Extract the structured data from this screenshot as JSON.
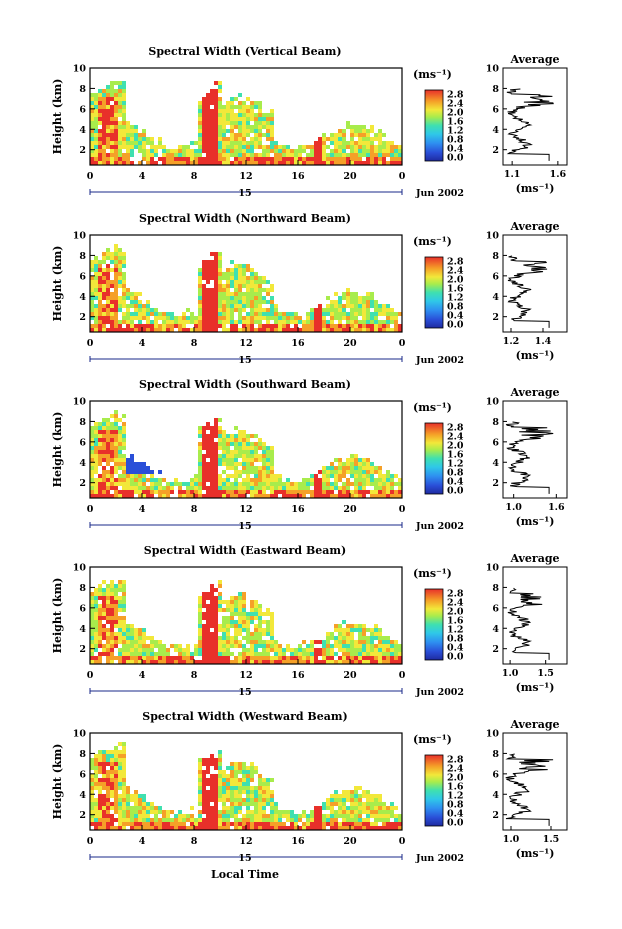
{
  "figure": {
    "xlabel": "Local Time",
    "ylabel": "Height (km)",
    "date_label": "Jun 2002",
    "day_label": "15",
    "colorbar_unit": "(ms⁻¹)",
    "avg_title": "Average",
    "avg_xlabel": "(ms⁻¹)"
  },
  "chart_data": [
    {
      "type": "heatmap",
      "title": "Spectral Width (Vertical Beam)",
      "x_ticks": [
        "0",
        "4",
        "8",
        "12",
        "16",
        "20",
        "0"
      ],
      "y_ticks": [
        "2",
        "4",
        "6",
        "8",
        "10"
      ],
      "xlim": [
        0,
        24
      ],
      "ylim": [
        0.5,
        10
      ],
      "colorbar": {
        "ticks": [
          "0.0",
          "0.4",
          "0.8",
          "1.2",
          "1.6",
          "2.0",
          "2.4",
          "2.8"
        ],
        "range": [
          0,
          2.8
        ]
      },
      "average": {
        "x_ticks": [
          "1.1",
          "1.6"
        ],
        "xlim": [
          1.0,
          1.7
        ],
        "y_ticks": [
          "2",
          "4",
          "6",
          "8",
          "10"
        ]
      }
    },
    {
      "type": "heatmap",
      "title": "Spectral Width (Northward Beam)",
      "x_ticks": [
        "0",
        "4",
        "8",
        "12",
        "16",
        "20",
        "0"
      ],
      "y_ticks": [
        "2",
        "4",
        "6",
        "8",
        "10"
      ],
      "xlim": [
        0,
        24
      ],
      "ylim": [
        0.5,
        10
      ],
      "colorbar": {
        "ticks": [
          "0.0",
          "0.4",
          "0.8",
          "1.2",
          "1.6",
          "2.0",
          "2.4",
          "2.8"
        ],
        "range": [
          0,
          2.8
        ]
      },
      "average": {
        "x_ticks": [
          "1.2",
          "1.4"
        ],
        "xlim": [
          1.15,
          1.55
        ],
        "y_ticks": [
          "2",
          "4",
          "6",
          "8",
          "10"
        ]
      }
    },
    {
      "type": "heatmap",
      "title": "Spectral Width (Southward Beam)",
      "x_ticks": [
        "0",
        "4",
        "8",
        "12",
        "16",
        "20",
        "0"
      ],
      "y_ticks": [
        "2",
        "4",
        "6",
        "8",
        "10"
      ],
      "xlim": [
        0,
        24
      ],
      "ylim": [
        0.5,
        10
      ],
      "colorbar": {
        "ticks": [
          "0.0",
          "0.4",
          "0.8",
          "1.2",
          "1.6",
          "2.0",
          "2.4",
          "2.8"
        ],
        "range": [
          0,
          2.8
        ]
      },
      "average": {
        "x_ticks": [
          "1.0",
          "1.6"
        ],
        "xlim": [
          0.85,
          1.75
        ],
        "y_ticks": [
          "2",
          "4",
          "6",
          "8",
          "10"
        ]
      }
    },
    {
      "type": "heatmap",
      "title": "Spectral Width (Eastward Beam)",
      "x_ticks": [
        "0",
        "4",
        "8",
        "12",
        "16",
        "20",
        "0"
      ],
      "y_ticks": [
        "2",
        "4",
        "6",
        "8",
        "10"
      ],
      "xlim": [
        0,
        24
      ],
      "ylim": [
        0.5,
        10
      ],
      "colorbar": {
        "ticks": [
          "0.0",
          "0.4",
          "0.8",
          "1.2",
          "1.6",
          "2.0",
          "2.4",
          "2.8"
        ],
        "range": [
          0,
          2.8
        ]
      },
      "average": {
        "x_ticks": [
          "1.0",
          "1.5"
        ],
        "xlim": [
          0.9,
          1.8
        ],
        "y_ticks": [
          "2",
          "4",
          "6",
          "8",
          "10"
        ]
      }
    },
    {
      "type": "heatmap",
      "title": "Spectral Width (Westward Beam)",
      "x_ticks": [
        "0",
        "4",
        "8",
        "12",
        "16",
        "20",
        "0"
      ],
      "y_ticks": [
        "2",
        "4",
        "6",
        "8",
        "10"
      ],
      "xlim": [
        0,
        24
      ],
      "ylim": [
        0.5,
        10
      ],
      "colorbar": {
        "ticks": [
          "0.0",
          "0.4",
          "0.8",
          "1.2",
          "1.6",
          "2.0",
          "2.4",
          "2.8"
        ],
        "range": [
          0,
          2.8
        ]
      },
      "average": {
        "x_ticks": [
          "1.0",
          "1.5"
        ],
        "xlim": [
          0.9,
          1.7
        ],
        "y_ticks": [
          "2",
          "4",
          "6",
          "8",
          "10"
        ]
      }
    }
  ]
}
